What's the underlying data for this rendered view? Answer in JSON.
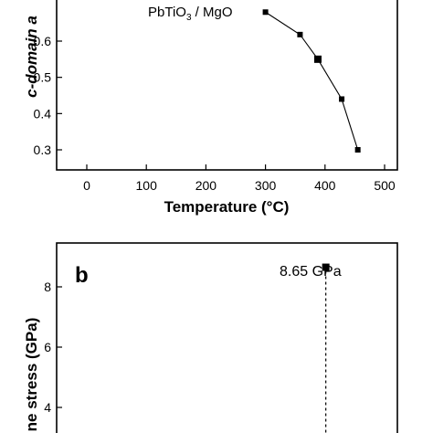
{
  "chart_data": [
    {
      "type": "line",
      "panel_label": "",
      "ylabel_visible": "c-domain a",
      "xlabel": "Temperature (°C)",
      "annotation": {
        "formula_main": "PbTiO",
        "formula_sub": "3",
        "formula_rest": " / MgO"
      },
      "xlim": [
        -50,
        500
      ],
      "ylim": [
        0.26,
        0.66
      ],
      "x_ticks": [
        0,
        100,
        200,
        300,
        400,
        500
      ],
      "y_ticks": [
        0.3,
        0.4,
        0.5,
        0.6
      ],
      "series": [
        {
          "x": [
            300,
            358,
            388,
            428,
            455
          ],
          "y": [
            0.68,
            0.618,
            0.55,
            0.44,
            0.3
          ]
        }
      ],
      "grid": false,
      "marker": "square",
      "line_style": "solid"
    },
    {
      "type": "scatter",
      "panel_label": "b",
      "ylabel_visible": "ne stress (GPa)",
      "annotation": "8.65 GPa",
      "xlim": [
        -50,
        500
      ],
      "ylim": [
        2.9,
        9.0
      ],
      "y_ticks": [
        4,
        6,
        8
      ],
      "series": [
        {
          "x": [
            455
          ],
          "y": [
            8.65
          ]
        }
      ],
      "drop_line": "dashed",
      "grid": false
    }
  ],
  "colors": {
    "ink": "#000000",
    "background": "#ffffff"
  }
}
